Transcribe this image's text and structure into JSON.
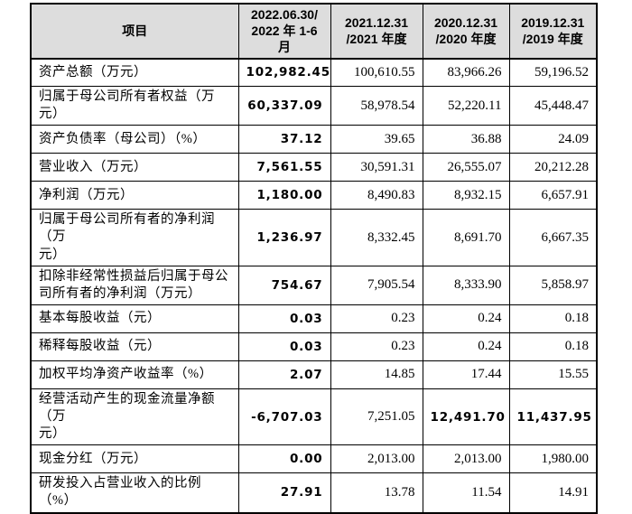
{
  "colors": {
    "header_bg": "#dddddd",
    "border": "#000000",
    "text": "#000000",
    "page_bg": "#ffffff"
  },
  "table": {
    "header": {
      "item": "项目",
      "periods": [
        "2022.06.30/\n2022 年 1-6 月",
        "2021.12.31\n/2021 年度",
        "2020.12.31\n/2020 年度",
        "2019.12.31\n/2019 年度"
      ]
    },
    "rows": [
      {
        "label": "资产总额（万元）",
        "values": [
          "102,982.45",
          "100,610.55",
          "83,966.26",
          "59,196.52"
        ]
      },
      {
        "label": "归属于母公司所有者权益（万元）",
        "values": [
          "60,337.09",
          "58,978.54",
          "52,220.11",
          "45,448.47"
        ]
      },
      {
        "label": "资产负债率（母公司）（%）",
        "values": [
          "37.12",
          "39.65",
          "36.88",
          "24.09"
        ]
      },
      {
        "label": "营业收入（万元）",
        "values": [
          "7,561.55",
          "30,591.31",
          "26,555.07",
          "20,212.28"
        ]
      },
      {
        "label": "净利润（万元）",
        "values": [
          "1,180.00",
          "8,490.83",
          "8,932.15",
          "6,657.91"
        ]
      },
      {
        "label": "归属于母公司所有者的净利润（万\n元）",
        "values": [
          "1,236.97",
          "8,332.45",
          "8,691.70",
          "6,667.35"
        ]
      },
      {
        "label": "扣除非经常性损益后归属于母公\n司所有者的净利润（万元）",
        "values": [
          "754.67",
          "7,905.54",
          "8,333.90",
          "5,858.97"
        ]
      },
      {
        "label": "基本每股收益（元）",
        "values": [
          "0.03",
          "0.23",
          "0.24",
          "0.18"
        ]
      },
      {
        "label": "稀释每股收益（元）",
        "values": [
          "0.03",
          "0.23",
          "0.24",
          "0.18"
        ]
      },
      {
        "label": "加权平均净资产收益率（%）",
        "values": [
          "2.07",
          "14.85",
          "17.44",
          "15.55"
        ]
      },
      {
        "label": "经营活动产生的现金流量净额（万\n元）",
        "values": [
          "-6,707.03",
          "7,251.05",
          "12,491.70",
          "11,437.95"
        ]
      },
      {
        "label": "现金分红（万元）",
        "values": [
          "0.00",
          "2,013.00",
          "2,013.00",
          "1,980.00"
        ]
      },
      {
        "label": "研发投入占营业收入的比例（%）",
        "values": [
          "27.91",
          "13.78",
          "11.54",
          "14.91"
        ]
      }
    ]
  }
}
